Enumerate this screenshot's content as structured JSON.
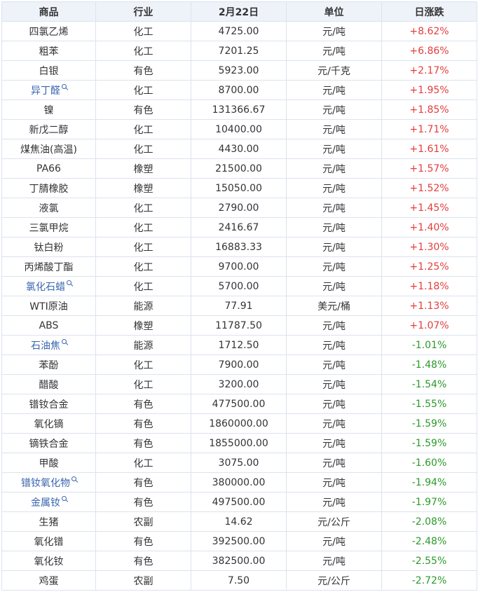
{
  "headers": [
    "商品",
    "行业",
    "2月22日",
    "单位",
    "日涨跌"
  ],
  "colors": {
    "up": "#e33d3d",
    "down": "#2b9a2b",
    "link": "#3a66b0",
    "header_bg": "#eef3fa",
    "border": "#dbe3ee"
  },
  "rows": [
    {
      "name": "四氯乙烯",
      "industry": "化工",
      "price": "4725.00",
      "unit": "元/吨",
      "change": "+8.62%",
      "link": false
    },
    {
      "name": "粗苯",
      "industry": "化工",
      "price": "7201.25",
      "unit": "元/吨",
      "change": "+6.86%",
      "link": false
    },
    {
      "name": "白银",
      "industry": "有色",
      "price": "5923.00",
      "unit": "元/千克",
      "change": "+2.17%",
      "link": false
    },
    {
      "name": "异丁醛",
      "industry": "化工",
      "price": "8700.00",
      "unit": "元/吨",
      "change": "+1.95%",
      "link": true
    },
    {
      "name": "镍",
      "industry": "有色",
      "price": "131366.67",
      "unit": "元/吨",
      "change": "+1.85%",
      "link": false
    },
    {
      "name": "新戊二醇",
      "industry": "化工",
      "price": "10400.00",
      "unit": "元/吨",
      "change": "+1.71%",
      "link": false
    },
    {
      "name": "煤焦油(高温)",
      "industry": "化工",
      "price": "4430.00",
      "unit": "元/吨",
      "change": "+1.61%",
      "link": false
    },
    {
      "name": "PA66",
      "industry": "橡塑",
      "price": "21500.00",
      "unit": "元/吨",
      "change": "+1.57%",
      "link": false
    },
    {
      "name": "丁腈橡胶",
      "industry": "橡塑",
      "price": "15050.00",
      "unit": "元/吨",
      "change": "+1.52%",
      "link": false
    },
    {
      "name": "液氯",
      "industry": "化工",
      "price": "2790.00",
      "unit": "元/吨",
      "change": "+1.45%",
      "link": false
    },
    {
      "name": "三氯甲烷",
      "industry": "化工",
      "price": "2416.67",
      "unit": "元/吨",
      "change": "+1.40%",
      "link": false
    },
    {
      "name": "钛白粉",
      "industry": "化工",
      "price": "16883.33",
      "unit": "元/吨",
      "change": "+1.30%",
      "link": false
    },
    {
      "name": "丙烯酸丁酯",
      "industry": "化工",
      "price": "9700.00",
      "unit": "元/吨",
      "change": "+1.25%",
      "link": false
    },
    {
      "name": "氯化石蜡",
      "industry": "化工",
      "price": "5700.00",
      "unit": "元/吨",
      "change": "+1.18%",
      "link": true
    },
    {
      "name": "WTI原油",
      "industry": "能源",
      "price": "77.91",
      "unit": "美元/桶",
      "change": "+1.13%",
      "link": false
    },
    {
      "name": "ABS",
      "industry": "橡塑",
      "price": "11787.50",
      "unit": "元/吨",
      "change": "+1.07%",
      "link": false
    },
    {
      "name": "石油焦",
      "industry": "能源",
      "price": "1712.50",
      "unit": "元/吨",
      "change": "-1.01%",
      "link": true
    },
    {
      "name": "苯酚",
      "industry": "化工",
      "price": "7900.00",
      "unit": "元/吨",
      "change": "-1.48%",
      "link": false
    },
    {
      "name": "醋酸",
      "industry": "化工",
      "price": "3200.00",
      "unit": "元/吨",
      "change": "-1.54%",
      "link": false
    },
    {
      "name": "镨钕合金",
      "industry": "有色",
      "price": "477500.00",
      "unit": "元/吨",
      "change": "-1.55%",
      "link": false
    },
    {
      "name": "氧化镝",
      "industry": "有色",
      "price": "1860000.00",
      "unit": "元/吨",
      "change": "-1.59%",
      "link": false
    },
    {
      "name": "镝铁合金",
      "industry": "有色",
      "price": "1855000.00",
      "unit": "元/吨",
      "change": "-1.59%",
      "link": false
    },
    {
      "name": "甲酸",
      "industry": "化工",
      "price": "3075.00",
      "unit": "元/吨",
      "change": "-1.60%",
      "link": false
    },
    {
      "name": "镨钕氧化物",
      "industry": "有色",
      "price": "380000.00",
      "unit": "元/吨",
      "change": "-1.94%",
      "link": true
    },
    {
      "name": "金属钕",
      "industry": "有色",
      "price": "497500.00",
      "unit": "元/吨",
      "change": "-1.97%",
      "link": true
    },
    {
      "name": "生猪",
      "industry": "农副",
      "price": "14.62",
      "unit": "元/公斤",
      "change": "-2.08%",
      "link": false
    },
    {
      "name": "氧化镨",
      "industry": "有色",
      "price": "392500.00",
      "unit": "元/吨",
      "change": "-2.48%",
      "link": false
    },
    {
      "name": "氧化钕",
      "industry": "有色",
      "price": "382500.00",
      "unit": "元/吨",
      "change": "-2.55%",
      "link": false
    },
    {
      "name": "鸡蛋",
      "industry": "农副",
      "price": "7.50",
      "unit": "元/公斤",
      "change": "-2.72%",
      "link": false
    }
  ]
}
